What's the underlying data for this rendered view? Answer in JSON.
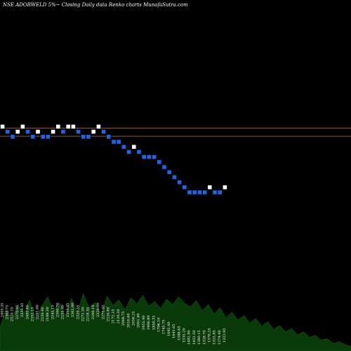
{
  "chart_data": {
    "type": "renko",
    "title": "NSE ADORWELD 5%~  Closing Daily data  Renko  charts MunafaSutra.com",
    "colors": {
      "background": "#000000",
      "up_brick": "#ffffff",
      "down_brick": "#1e66e6",
      "resistance_line": "#a0522d",
      "volume_area": "#0a3a0a"
    },
    "bricks": [
      {
        "c": 1,
        "d": "up"
      },
      {
        "c": 2,
        "d": "down"
      },
      {
        "c": 3,
        "d": "down"
      },
      {
        "c": 4,
        "d": "up"
      },
      {
        "c": 5,
        "d": "up"
      },
      {
        "c": 6,
        "d": "down"
      },
      {
        "c": 7,
        "d": "down"
      },
      {
        "c": 8,
        "d": "up"
      },
      {
        "c": 9,
        "d": "down"
      },
      {
        "c": 10,
        "d": "down"
      },
      {
        "c": 11,
        "d": "up"
      },
      {
        "c": 12,
        "d": "up"
      },
      {
        "c": 13,
        "d": "down"
      },
      {
        "c": 14,
        "d": "up"
      },
      {
        "c": 15,
        "d": "up"
      },
      {
        "c": 16,
        "d": "down"
      },
      {
        "c": 17,
        "d": "down"
      },
      {
        "c": 18,
        "d": "down"
      },
      {
        "c": 19,
        "d": "up"
      },
      {
        "c": 20,
        "d": "up"
      },
      {
        "c": 21,
        "d": "down"
      },
      {
        "c": 22,
        "d": "down"
      },
      {
        "c": 23,
        "d": "down"
      },
      {
        "c": 24,
        "d": "down"
      },
      {
        "c": 25,
        "d": "down"
      },
      {
        "c": 26,
        "d": "down"
      },
      {
        "c": 27,
        "d": "up"
      },
      {
        "c": 28,
        "d": "down"
      },
      {
        "c": 29,
        "d": "down"
      },
      {
        "c": 30,
        "d": "down"
      },
      {
        "c": 31,
        "d": "down"
      },
      {
        "c": 32,
        "d": "down"
      },
      {
        "c": 33,
        "d": "down"
      },
      {
        "c": 34,
        "d": "down"
      },
      {
        "c": 35,
        "d": "down"
      },
      {
        "c": 36,
        "d": "down"
      },
      {
        "c": 37,
        "d": "down"
      },
      {
        "c": 38,
        "d": "down"
      },
      {
        "c": 39,
        "d": "down"
      },
      {
        "c": 40,
        "d": "down"
      },
      {
        "c": 41,
        "d": "down"
      },
      {
        "c": 42,
        "d": "up"
      },
      {
        "c": 43,
        "d": "down"
      },
      {
        "c": 44,
        "d": "down"
      },
      {
        "c": 45,
        "d": "up"
      }
    ],
    "brick_levels": [
      6,
      5,
      4,
      5,
      6,
      5,
      4,
      5,
      4,
      4,
      5,
      6,
      5,
      6,
      6,
      5,
      4,
      4,
      5,
      6,
      5,
      4,
      3,
      3,
      2,
      1,
      2,
      1,
      0,
      0,
      0,
      -1,
      -2,
      -3,
      -4,
      -5,
      -6,
      -7,
      -7,
      -7,
      -7,
      -6,
      -7,
      -7,
      -6
    ],
    "resistance_levels": [
      5.2,
      3.6
    ],
    "volume_profile": [
      0.3,
      0.55,
      0.42,
      0.6,
      0.48,
      0.66,
      0.4,
      0.58,
      0.7,
      0.52,
      0.62,
      0.45,
      0.68,
      0.5,
      0.74,
      0.56,
      0.63,
      0.47,
      0.71,
      0.59,
      0.66,
      0.53,
      0.69,
      0.61,
      0.72,
      0.58,
      0.64,
      0.55,
      0.67,
      0.6,
      0.7,
      0.62,
      0.57,
      0.65,
      0.52,
      0.6,
      0.48,
      0.56,
      0.43,
      0.5,
      0.4,
      0.46,
      0.36,
      0.42,
      0.32,
      0.38,
      0.28,
      0.33,
      0.25,
      0.29,
      0.21,
      0.25,
      0.18,
      0.2,
      0.14,
      0.16,
      0.1,
      0.12,
      0.08,
      0.06
    ],
    "x_tick_labels": [
      "2405.35",
      "2365.75",
      "2320.10",
      "2270.95",
      "2330.45",
      "2405.60",
      "2352.15",
      "2291.00",
      "2230.40",
      "2188.30",
      "2245.15",
      "2300.70",
      "2255.40",
      "2310.85",
      "2362.90",
      "2320.55",
      "2271.30",
      "2218.45",
      "2266.10",
      "2320.00",
      "2275.45",
      "2226.80",
      "2172.15",
      "2120.30",
      "2068.75",
      "2010.60",
      "2058.25",
      "2001.90",
      "1955.40",
      "1906.80",
      "1850.35",
      "1796.10",
      "1745.75",
      "1692.40",
      "1641.05",
      "1586.65",
      "1535.20",
      "1482.90",
      "1431.50",
      "1380.15",
      "1328.70",
      "1376.25",
      "1325.85",
      "1274.40",
      "1322.95"
    ]
  }
}
